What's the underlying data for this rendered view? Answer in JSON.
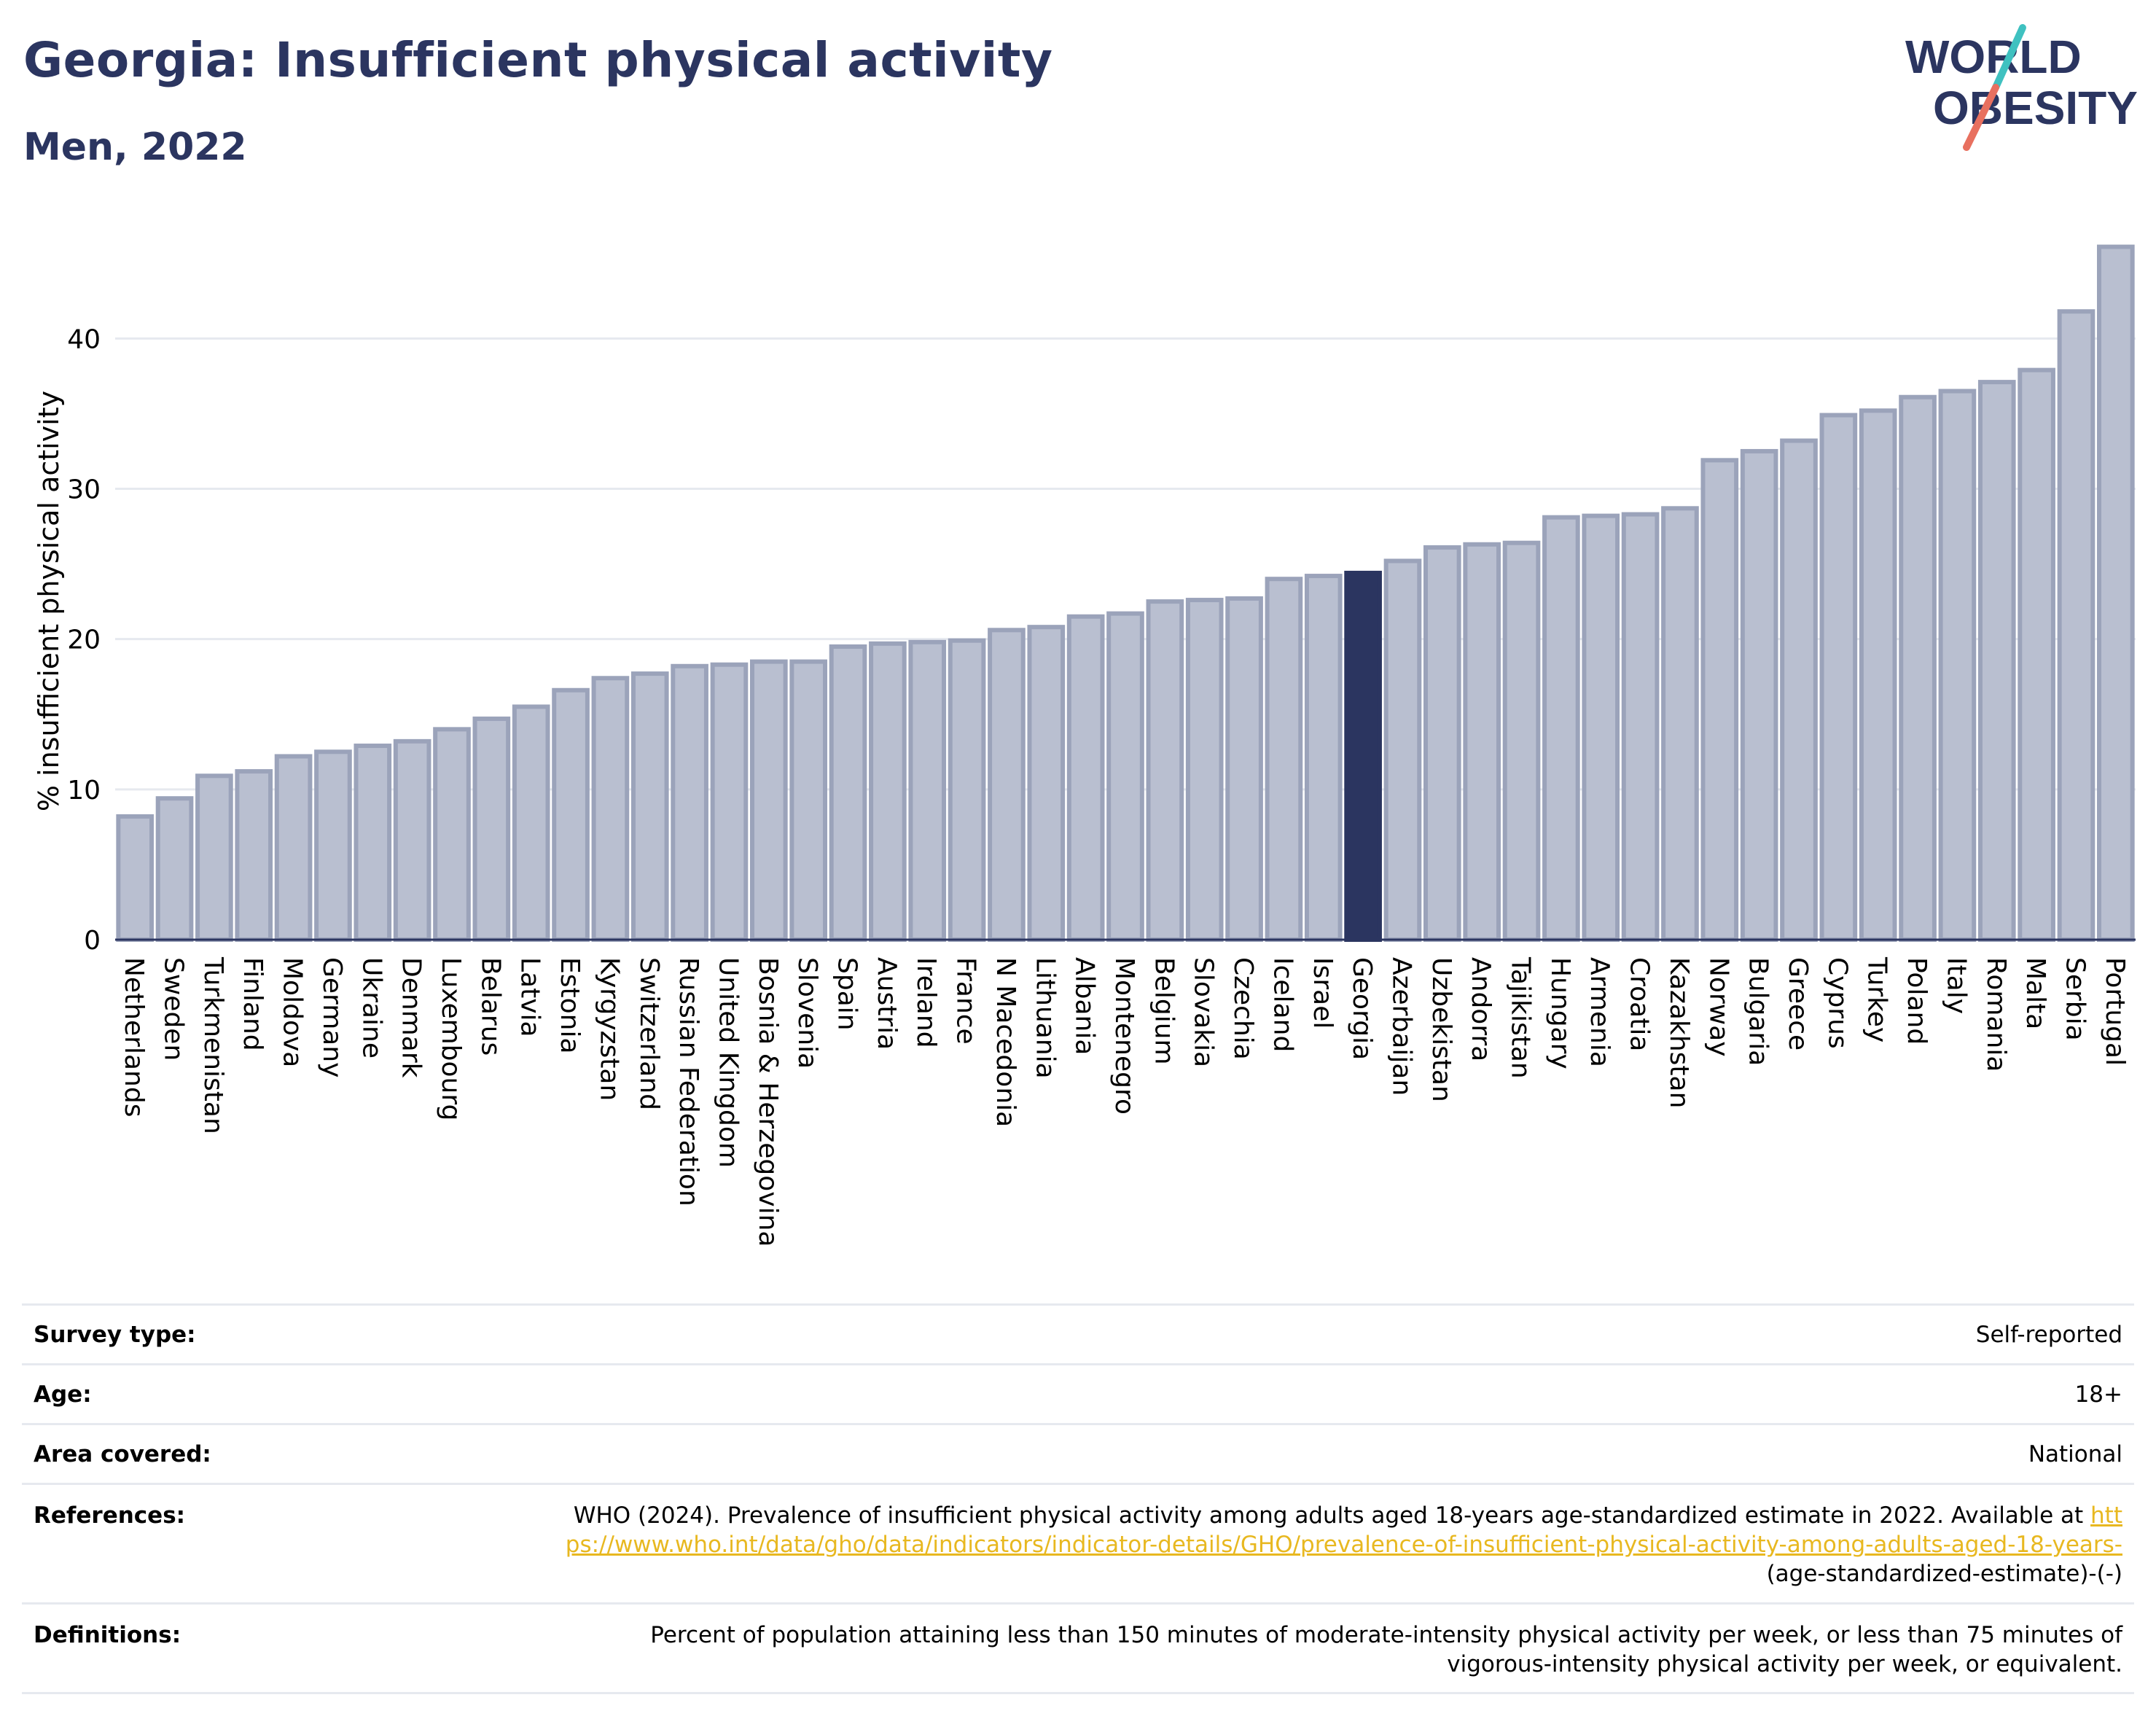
{
  "header": {
    "title": "Georgia: Insufficient physical activity",
    "subtitle": "Men, 2022",
    "logo_line1": "WORLD",
    "logo_line2": "OBESITY"
  },
  "colors": {
    "bar": "#b9bfd0",
    "bar_border": "#9ba3ba",
    "highlight": "#2b3560",
    "title": "#2b3560",
    "logo_teal": "#3fc1c0",
    "logo_red": "#e8705f",
    "link": "#e8b820"
  },
  "chart_data": {
    "type": "bar",
    "title": "",
    "xlabel": "",
    "ylabel": "% insufficient physical activity",
    "ylim": [
      0,
      47
    ],
    "yticks": [
      0,
      10,
      20,
      30,
      40
    ],
    "grid": true,
    "highlight": "Georgia",
    "categories": [
      "Netherlands",
      "Sweden",
      "Turkmenistan",
      "Finland",
      "Moldova",
      "Germany",
      "Ukraine",
      "Denmark",
      "Luxembourg",
      "Belarus",
      "Latvia",
      "Estonia",
      "Kyrgyzstan",
      "Switzerland",
      "Russian Federation",
      "United Kingdom",
      "Bosnia & Herzegovina",
      "Slovenia",
      "Spain",
      "Austria",
      "Ireland",
      "France",
      "N Macedonia",
      "Lithuania",
      "Albania",
      "Montenegro",
      "Belgium",
      "Slovakia",
      "Czechia",
      "Iceland",
      "Israel",
      "Georgia",
      "Azerbaijan",
      "Uzbekistan",
      "Andorra",
      "Tajikistan",
      "Hungary",
      "Armenia",
      "Croatia",
      "Kazakhstan",
      "Norway",
      "Bulgaria",
      "Greece",
      "Cyprus",
      "Turkey",
      "Poland",
      "Italy",
      "Romania",
      "Malta",
      "Serbia",
      "Portugal"
    ],
    "values": [
      8.2,
      9.4,
      10.9,
      11.2,
      12.2,
      12.5,
      12.9,
      13.2,
      14.0,
      14.7,
      15.5,
      16.6,
      17.4,
      17.7,
      18.2,
      18.3,
      18.5,
      18.5,
      19.5,
      19.7,
      19.8,
      19.9,
      20.6,
      20.8,
      21.5,
      21.7,
      22.5,
      22.6,
      22.7,
      24.0,
      24.2,
      24.4,
      25.2,
      26.1,
      26.3,
      26.4,
      28.1,
      28.2,
      28.3,
      28.7,
      31.9,
      32.5,
      33.2,
      34.9,
      35.2,
      36.1,
      36.5,
      37.1,
      37.9,
      41.8,
      46.1
    ]
  },
  "meta": {
    "rows": [
      {
        "label": "Survey type:",
        "value": "Self-reported"
      },
      {
        "label": "Age:",
        "value": "18+"
      },
      {
        "label": "Area covered:",
        "value": "National"
      }
    ],
    "references": {
      "label": "References:",
      "text": "WHO (2024). Prevalence of insufficient physical activity among adults aged 18-years age-standardized estimate in 2022. Available at",
      "link": "https://www.who.int/data/gho/data/indicators/indicator-details/GHO/prevalence-of-insufficient-physical-activity-among-adults-aged-18-years-",
      "suffix": "(age-standardized-estimate)-(-)"
    },
    "definitions": {
      "label": "Definitions:",
      "text": "Percent of population attaining less than 150 minutes of moderate-intensity physical activity per week, or less than 75 minutes of vigorous-intensity physical activity per week, or equivalent."
    }
  }
}
